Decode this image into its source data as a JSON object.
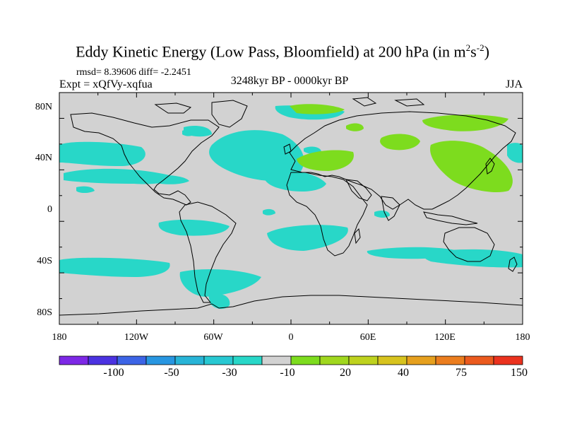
{
  "title": {
    "main": "Eddy Kinetic Energy (Low Pass, Bloomfield) at 200 hPa (in m",
    "sup1": "2",
    "mid": "s",
    "sup2": "-2",
    "close": ")"
  },
  "stats": "rmsd= 8.39606 diff= -2.2451",
  "expt": "Expt = xQfVy-xqfua",
  "period": "3248kyr BP - 0000kyr BP",
  "season": "JJA",
  "map": {
    "lat_labels": [
      "80N",
      "40N",
      "0",
      "40S",
      "80S"
    ],
    "lon_labels": [
      "180",
      "120W",
      "60W",
      "0",
      "60E",
      "120E",
      "180"
    ],
    "colors": {
      "land_bg": "#d2d2d2",
      "negative": "#28d7c8",
      "positive": "#7ddc1e"
    }
  },
  "colorbar": {
    "labels": [
      "-100",
      "-50",
      "-30",
      "-10",
      "20",
      "40",
      "75",
      "150"
    ],
    "colors": [
      "#7d28e6",
      "#4b32e1",
      "#3c64e6",
      "#2896e1",
      "#28b4d7",
      "#28c8d2",
      "#28d7c8",
      "#d2d2d2",
      "#7ddc1e",
      "#a0d71e",
      "#bed21e",
      "#d7c31e",
      "#e6a01e",
      "#eb7d1e",
      "#eb5a1e",
      "#eb321e"
    ]
  }
}
